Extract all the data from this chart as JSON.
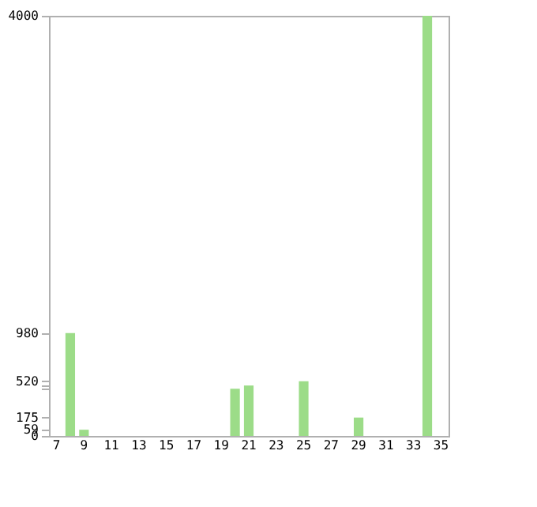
{
  "chart_data": {
    "type": "bar",
    "categories": [
      "7",
      null,
      "9",
      null,
      "11",
      null,
      "13",
      null,
      "15",
      null,
      "17",
      null,
      "19",
      null,
      "21",
      null,
      "23",
      null,
      "25",
      null,
      "27",
      null,
      "29",
      null,
      "31",
      null,
      "33",
      null,
      "35"
    ],
    "values": [
      0,
      980,
      59,
      0,
      0,
      0,
      0,
      0,
      0,
      0,
      0,
      0,
      0,
      450,
      480,
      0,
      0,
      0,
      520,
      0,
      0,
      0,
      175,
      0,
      0,
      0,
      0,
      4000,
      0
    ],
    "color": "#9cdc88",
    "ylim": [
      0,
      4000
    ],
    "yticks": [
      0,
      59,
      175,
      {
        "value": 450,
        "label": null
      },
      {
        "value": 480,
        "label": null
      },
      520,
      980,
      4000
    ],
    "grid": false
  }
}
